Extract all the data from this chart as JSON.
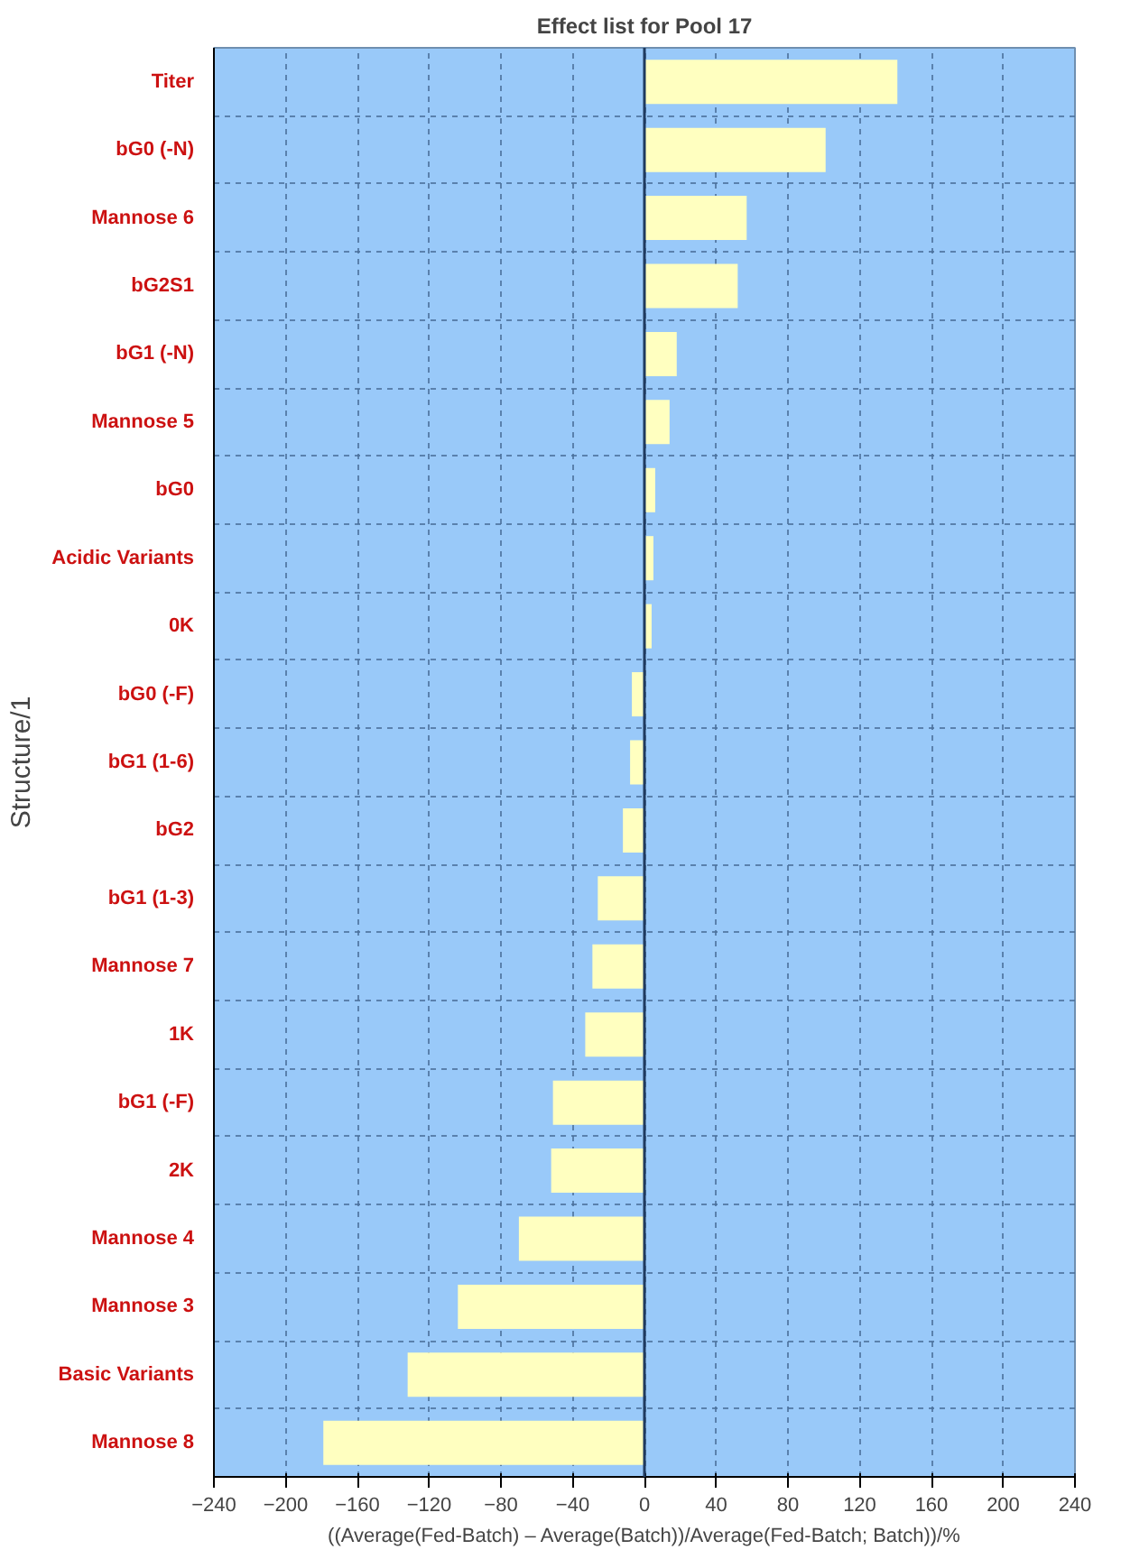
{
  "chart_data": {
    "type": "bar",
    "orientation": "horizontal",
    "title": "Effect list for Pool 17",
    "xlabel": "((Average(Fed-Batch) – Average(Batch))/Average(Fed-Batch; Batch))/%",
    "ylabel": "Structure/1",
    "categories": [
      "Titer",
      "bG0 (-N)",
      "Mannose 6",
      "bG2S1",
      "bG1 (-N)",
      "Mannose 5",
      "bG0",
      "Acidic Variants",
      "0K",
      "bG0 (-F)",
      "bG1 (1-6)",
      "bG2",
      "bG1 (1-3)",
      "Mannose 7",
      "1K",
      "bG1 (-F)",
      "2K",
      "Mannose 4",
      "Mannose 3",
      "Basic Variants",
      "Mannose 8"
    ],
    "values": [
      141,
      101,
      57,
      52,
      18,
      14,
      6,
      5,
      4,
      -7,
      -8,
      -12,
      -26,
      -29,
      -33,
      -51,
      -52,
      -70,
      -104,
      -132,
      -179
    ],
    "color": "#ffffc0",
    "xlim": [
      -240,
      240
    ],
    "xticks": [
      -240,
      -200,
      -160,
      -120,
      -80,
      -40,
      0,
      40,
      80,
      120,
      160,
      200,
      240
    ],
    "grid": true,
    "ref_lines": [
      {
        "axis": "x",
        "value": 0,
        "color": "#1f3a5f"
      }
    ]
  }
}
